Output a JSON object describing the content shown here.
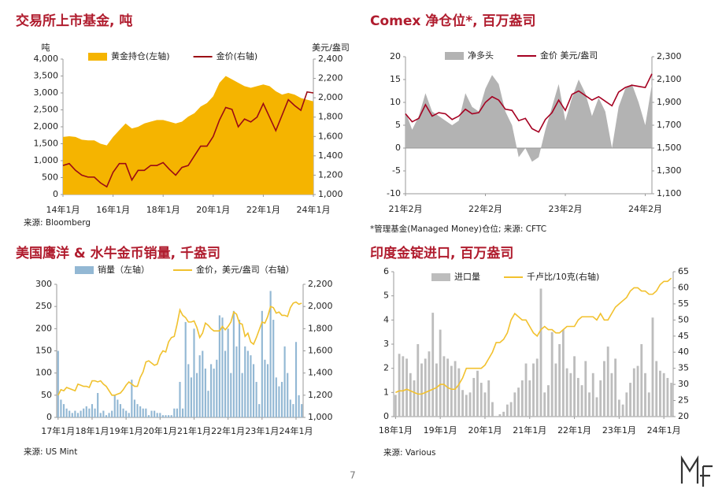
{
  "chart_data": [
    {
      "type": "area",
      "title": "交易所上市基金, 吨",
      "ylabel": "吨",
      "y2label": "美元/盎司",
      "source": "来源: Bloomberg",
      "categories": [
        "14年1月",
        null,
        null,
        null,
        null,
        null,
        null,
        null,
        "16年1月",
        null,
        null,
        null,
        null,
        null,
        null,
        null,
        "18年1月",
        null,
        null,
        null,
        null,
        null,
        null,
        null,
        "20年1月",
        null,
        null,
        null,
        null,
        null,
        null,
        null,
        "22年1月",
        null,
        null,
        null,
        null,
        null,
        null,
        null,
        "24年1月"
      ],
      "series": [
        {
          "name": "黄金持仓(左轴)",
          "color": "#f5b400",
          "values": [
            1700,
            1720,
            1700,
            1620,
            1600,
            1600,
            1500,
            1450,
            1700,
            1900,
            2100,
            1950,
            2000,
            2100,
            2150,
            2200,
            2200,
            2150,
            2100,
            2150,
            2300,
            2400,
            2600,
            2700,
            2900,
            3300,
            3500,
            3400,
            3300,
            3200,
            3150,
            3200,
            3250,
            3200,
            3050,
            2950,
            3000,
            2950,
            2850,
            2800,
            2750
          ]
        },
        {
          "name": "金价(右轴)",
          "color": "#9b0a14",
          "axis": "y2",
          "values": [
            1300,
            1320,
            1250,
            1200,
            1180,
            1180,
            1120,
            1080,
            1230,
            1320,
            1320,
            1150,
            1250,
            1250,
            1300,
            1300,
            1330,
            1260,
            1200,
            1280,
            1300,
            1400,
            1500,
            1500,
            1600,
            1770,
            1900,
            1880,
            1700,
            1780,
            1750,
            1800,
            1940,
            1800,
            1660,
            1820,
            1980,
            1920,
            1870,
            2060,
            2050
          ]
        }
      ],
      "ylim": [
        0,
        4000
      ],
      "yticks": [
        0,
        500,
        {
          "value": 1000,
          "label": "1,000"
        },
        {
          "value": 1500,
          "label": "1,500"
        },
        {
          "value": 2000,
          "label": "2,000"
        },
        {
          "value": 2500,
          "label": "2,500"
        },
        {
          "value": 3000,
          "label": "3,000"
        },
        {
          "value": 3500,
          "label": "3,500"
        },
        {
          "value": 4000,
          "label": "4,000"
        }
      ],
      "y2lim": [
        1000,
        2400
      ],
      "y2ticks": [
        {
          "value": 1000,
          "label": "1,000"
        },
        {
          "value": 1200,
          "label": "1,200"
        },
        {
          "value": 1400,
          "label": "1,400"
        },
        {
          "value": 1600,
          "label": "1,600"
        },
        {
          "value": 1800,
          "label": "1,800"
        },
        {
          "value": 2000,
          "label": "2,000"
        },
        {
          "value": 2200,
          "label": "2,200"
        },
        {
          "value": 2400,
          "label": "2,400"
        }
      ]
    },
    {
      "type": "area",
      "title": "Comex 净仓位*, 百万盎司",
      "source": "*管理基金(Managed Money)仓位;  来源: CFTC",
      "categories": [
        "21年2月",
        null,
        null,
        null,
        null,
        null,
        null,
        null,
        null,
        null,
        null,
        null,
        "22年2月",
        null,
        null,
        null,
        null,
        null,
        null,
        null,
        null,
        null,
        null,
        null,
        "23年2月",
        null,
        null,
        null,
        null,
        null,
        null,
        null,
        null,
        null,
        null,
        null,
        "24年2月",
        null
      ],
      "series": [
        {
          "name": "净多头",
          "color": "#b3b3b3",
          "values": [
            8,
            4,
            7,
            12,
            8,
            7,
            6,
            5,
            6,
            12,
            9,
            8,
            13,
            16,
            14,
            8,
            5,
            -2,
            0,
            -3,
            -2,
            4,
            9,
            14,
            6,
            11,
            15,
            12,
            7,
            11,
            8,
            0,
            9,
            13,
            14,
            10,
            5,
            14
          ]
        },
        {
          "name": "金价 美元/盎司",
          "color": "#a50021",
          "axis": "y2",
          "values": [
            1800,
            1730,
            1760,
            1880,
            1780,
            1810,
            1800,
            1750,
            1780,
            1840,
            1800,
            1810,
            1900,
            1950,
            1920,
            1840,
            1830,
            1740,
            1760,
            1670,
            1640,
            1750,
            1810,
            1920,
            1830,
            1970,
            2000,
            1960,
            1920,
            1950,
            1910,
            1870,
            1990,
            2030,
            2050,
            2040,
            2030,
            2150
          ]
        }
      ],
      "ylim": [
        -10,
        20
      ],
      "yticks": [
        -10,
        -5,
        0,
        5,
        10,
        15,
        20
      ],
      "y2lim": [
        1100,
        2300
      ],
      "y2ticks": [
        {
          "value": 1100,
          "label": "1,100"
        },
        {
          "value": 1300,
          "label": "1,300"
        },
        {
          "value": 1500,
          "label": "1,500"
        },
        {
          "value": 1700,
          "label": "1,700"
        },
        {
          "value": 1900,
          "label": "1,900"
        },
        {
          "value": 2100,
          "label": "2,100"
        },
        {
          "value": 2300,
          "label": "2,300"
        }
      ]
    },
    {
      "type": "bar",
      "title": "美国鹰洋 & 水牛金币销量, 千盎司",
      "source": "来源: US Mint",
      "categories": [
        "17年1月",
        null,
        null,
        null,
        null,
        null,
        null,
        null,
        null,
        null,
        null,
        null,
        "18年1月",
        null,
        null,
        null,
        null,
        null,
        null,
        null,
        null,
        null,
        null,
        null,
        "19年1月",
        null,
        null,
        null,
        null,
        null,
        null,
        null,
        null,
        null,
        null,
        null,
        "20年1月",
        null,
        null,
        null,
        null,
        null,
        null,
        null,
        null,
        null,
        null,
        null,
        "21年1月",
        null,
        null,
        null,
        null,
        null,
        null,
        null,
        null,
        null,
        null,
        null,
        "22年1月",
        null,
        null,
        null,
        null,
        null,
        null,
        null,
        null,
        null,
        null,
        null,
        "23年1月",
        null,
        null,
        null,
        null,
        null,
        null,
        null,
        null,
        null,
        null,
        null,
        "24年1月",
        null,
        null
      ],
      "series": [
        {
          "name": "销量（左轴）",
          "color": "#93b8d4",
          "values": [
            150,
            40,
            30,
            20,
            15,
            10,
            15,
            10,
            15,
            20,
            25,
            20,
            30,
            20,
            55,
            10,
            15,
            5,
            10,
            15,
            50,
            40,
            30,
            20,
            15,
            10,
            85,
            40,
            30,
            25,
            20,
            20,
            5,
            15,
            15,
            10,
            10,
            5,
            5,
            5,
            5,
            20,
            20,
            80,
            20,
            215,
            120,
            90,
            200,
            100,
            140,
            150,
            110,
            60,
            120,
            110,
            130,
            230,
            225,
            150,
            200,
            100,
            240,
            160,
            220,
            100,
            160,
            150,
            140,
            120,
            80,
            30,
            240,
            130,
            120,
            285,
            220,
            90,
            70,
            80,
            160,
            100,
            40,
            30,
            170,
            50,
            30
          ]
        },
        {
          "name": "金价，美元/盎司（右轴）",
          "color": "#f0c12e",
          "axis": "y2",
          "values": [
            1200,
            1250,
            1240,
            1270,
            1260,
            1250,
            1240,
            1300,
            1290,
            1280,
            1280,
            1270,
            1330,
            1330,
            1320,
            1330,
            1300,
            1280,
            1240,
            1200,
            1200,
            1210,
            1220,
            1250,
            1290,
            1320,
            1300,
            1280,
            1280,
            1360,
            1410,
            1500,
            1510,
            1490,
            1470,
            1480,
            1560,
            1600,
            1590,
            1680,
            1720,
            1730,
            1840,
            1970,
            1920,
            1900,
            1860,
            1860,
            1870,
            1810,
            1720,
            1760,
            1850,
            1830,
            1800,
            1780,
            1780,
            1780,
            1820,
            1790,
            1820,
            1860,
            1950,
            1930,
            1850,
            1840,
            1730,
            1760,
            1680,
            1660,
            1720,
            1790,
            1860,
            1850,
            1910,
            2000,
            1990,
            1940,
            1950,
            1920,
            1920,
            1910,
            1990,
            2030,
            2040,
            2020,
            2030
          ]
        }
      ],
      "ylim": [
        0,
        300
      ],
      "yticks": [
        0,
        50,
        100,
        150,
        200,
        250,
        300
      ],
      "y2lim": [
        1000,
        2200
      ],
      "y2ticks": [
        {
          "value": 1000,
          "label": "1,000"
        },
        {
          "value": 1200,
          "label": "1,200"
        },
        {
          "value": 1400,
          "label": "1,400"
        },
        {
          "value": 1600,
          "label": "1,600"
        },
        {
          "value": 1800,
          "label": "1,800"
        },
        {
          "value": 2000,
          "label": "2,000"
        },
        {
          "value": 2200,
          "label": "2,200"
        }
      ]
    },
    {
      "type": "bar",
      "title": "印度金锭进口, 百万盎司",
      "source": "来源: Various",
      "categories": [
        "18年1月",
        null,
        null,
        null,
        null,
        null,
        null,
        null,
        null,
        null,
        null,
        null,
        "19年1月",
        null,
        null,
        null,
        null,
        null,
        null,
        null,
        null,
        null,
        null,
        null,
        "20年1月",
        null,
        null,
        null,
        null,
        null,
        null,
        null,
        null,
        null,
        null,
        null,
        "21年1月",
        null,
        null,
        null,
        null,
        null,
        null,
        null,
        null,
        null,
        null,
        null,
        "22年1月",
        null,
        null,
        null,
        null,
        null,
        null,
        null,
        null,
        null,
        null,
        null,
        "23年1月",
        null,
        null,
        null,
        null,
        null,
        null,
        null,
        null,
        null,
        null,
        null,
        "24年1月",
        null,
        null
      ],
      "series": [
        {
          "name": "进口量",
          "color": "#bdbdbd",
          "values": [
            0.9,
            2.6,
            2.5,
            2.4,
            1.8,
            1.5,
            3.0,
            2.2,
            2.4,
            2.7,
            4.3,
            2.2,
            3.6,
            2.5,
            2.4,
            2.1,
            2.3,
            2.0,
            1.1,
            0.9,
            1.0,
            1.6,
            1.9,
            1.4,
            1.0,
            1.5,
            0.6,
            0.0,
            0.1,
            0.2,
            0.5,
            0.6,
            1.0,
            1.2,
            1.5,
            2.2,
            1.5,
            2.2,
            2.4,
            5.3,
            1.0,
            1.3,
            3.5,
            2.2,
            3.0,
            3.6,
            2.0,
            1.8,
            2.5,
            1.6,
            1.3,
            2.3,
            1.0,
            1.8,
            0.8,
            1.5,
            2.3,
            2.9,
            1.8,
            2.4,
            0.7,
            0.5,
            1.0,
            1.4,
            2.0,
            2.1,
            3.0,
            1.8,
            1.0,
            4.1,
            2.3,
            1.9,
            1.8,
            1.6,
            1.4
          ]
        },
        {
          "name": "千卢比/10克(右轴)",
          "color": "#f2c12e",
          "axis": "y2",
          "values": [
            27.5,
            28,
            28,
            28.5,
            28,
            27.5,
            27,
            27,
            27.5,
            28,
            28.5,
            29,
            30,
            30,
            29,
            28.5,
            28.5,
            30,
            32,
            35,
            35,
            35,
            35,
            35,
            36,
            38,
            40,
            43,
            43,
            44,
            46,
            50,
            52,
            51,
            50,
            50,
            48,
            46,
            45,
            47,
            48,
            47,
            47,
            46,
            46,
            47,
            48,
            48,
            48,
            50,
            51,
            51,
            51,
            51,
            50,
            52,
            50,
            50,
            52,
            54,
            55,
            56,
            57,
            59,
            60,
            60,
            59,
            59,
            58,
            58,
            59,
            61,
            62,
            62,
            63
          ]
        }
      ],
      "ylim": [
        0,
        6
      ],
      "yticks": [
        0,
        1,
        2,
        3,
        4,
        5,
        6
      ],
      "y2lim": [
        20,
        65
      ],
      "y2ticks": [
        20,
        25,
        30,
        35,
        40,
        45,
        50,
        55,
        60,
        65
      ]
    }
  ],
  "page_number": "7"
}
